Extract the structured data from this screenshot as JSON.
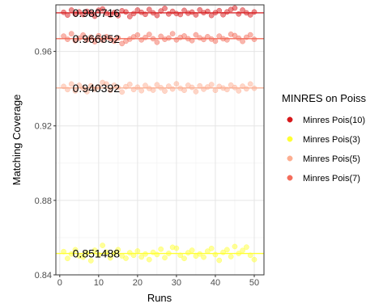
{
  "chart_data": {
    "type": "scatter",
    "xlabel": "Runs",
    "ylabel": "Matching Coverage",
    "xlim": [
      -1,
      52.5
    ],
    "ylim": [
      0.84,
      0.985
    ],
    "x_ticks": [
      0,
      10,
      20,
      30,
      40,
      50
    ],
    "x_tick_labels": [
      "0",
      "10",
      "20",
      "30",
      "40",
      "50"
    ],
    "y_ticks": [
      0.84,
      0.88,
      0.92,
      0.96
    ],
    "y_tick_labels": [
      "0.84",
      "0.88",
      "0.92",
      "0.96"
    ],
    "grid": true,
    "legend_position": "right",
    "legend": {
      "title": "MINRES on Poiss",
      "entries": [
        {
          "label": "Minres Pois(10)",
          "color": "#d7191c"
        },
        {
          "label": "Minres Pois(3)",
          "color": "#ffff33"
        },
        {
          "label": "Minres Pois(5)",
          "color": "#fdae91"
        },
        {
          "label": "Minres Pois(7)",
          "color": "#f46d5b"
        }
      ]
    },
    "series": [
      {
        "name": "Minres Pois(10)",
        "color": "#d7191c",
        "mean": 0.980716,
        "mean_label": "0.980716",
        "x": [
          1,
          2,
          3,
          4,
          5,
          6,
          7,
          8,
          9,
          10,
          11,
          12,
          13,
          14,
          15,
          16,
          17,
          18,
          19,
          20,
          21,
          22,
          23,
          24,
          25,
          26,
          27,
          28,
          29,
          30,
          31,
          32,
          33,
          34,
          35,
          36,
          37,
          38,
          39,
          40,
          41,
          42,
          43,
          44,
          45,
          46,
          47,
          48,
          49,
          50
        ],
        "values": [
          0.981,
          0.9795,
          0.9822,
          0.9801,
          0.9812,
          0.9798,
          0.9815,
          0.9806,
          0.9789,
          0.9821,
          0.9828,
          0.9805,
          0.9796,
          0.9809,
          0.9792,
          0.9818,
          0.9812,
          0.9787,
          0.9803,
          0.9822,
          0.981,
          0.9799,
          0.9825,
          0.9807,
          0.9793,
          0.9817,
          0.9831,
          0.9801,
          0.9815,
          0.9803,
          0.9798,
          0.982,
          0.9805,
          0.9811,
          0.9796,
          0.9823,
          0.9808,
          0.9815,
          0.9793,
          0.9808,
          0.9819,
          0.9797,
          0.9812,
          0.9825,
          0.9833,
          0.9801,
          0.9822,
          0.9807,
          0.9796,
          0.9812
        ]
      },
      {
        "name": "Minres Pois(7)",
        "color": "#f46d5b",
        "mean": 0.966852,
        "mean_label": "0.966852",
        "x": [
          1,
          2,
          3,
          4,
          5,
          6,
          7,
          8,
          9,
          10,
          11,
          12,
          13,
          14,
          15,
          16,
          17,
          18,
          19,
          20,
          21,
          22,
          23,
          24,
          25,
          26,
          27,
          28,
          29,
          30,
          31,
          32,
          33,
          34,
          35,
          36,
          37,
          38,
          39,
          40,
          41,
          42,
          43,
          44,
          45,
          46,
          47,
          48,
          49,
          50
        ],
        "values": [
          0.9682,
          0.9665,
          0.9695,
          0.9658,
          0.9671,
          0.9688,
          0.9662,
          0.9676,
          0.9652,
          0.9684,
          0.9661,
          0.9679,
          0.9669,
          0.9655,
          0.9672,
          0.9642,
          0.9655,
          0.9666,
          0.9678,
          0.9688,
          0.9662,
          0.9675,
          0.9691,
          0.9668,
          0.9649,
          0.9681,
          0.9665,
          0.9672,
          0.9695,
          0.9662,
          0.9675,
          0.9683,
          0.9668,
          0.9658,
          0.9689,
          0.9673,
          0.9664,
          0.9679,
          0.9666,
          0.9655,
          0.9682,
          0.9668,
          0.9662,
          0.9692,
          0.9685,
          0.9671,
          0.9654,
          0.9676,
          0.9689,
          0.9665
        ]
      },
      {
        "name": "Minres Pois(5)",
        "color": "#fdae91",
        "mean": 0.940392,
        "mean_label": "0.940392",
        "x": [
          1,
          2,
          3,
          4,
          5,
          6,
          7,
          8,
          9,
          10,
          11,
          12,
          13,
          14,
          15,
          16,
          17,
          18,
          19,
          20,
          21,
          22,
          23,
          24,
          25,
          26,
          27,
          28,
          29,
          30,
          31,
          32,
          33,
          34,
          35,
          36,
          37,
          38,
          39,
          40,
          41,
          42,
          43,
          44,
          45,
          46,
          47,
          48,
          49,
          50
        ],
        "values": [
          0.9412,
          0.9395,
          0.9425,
          0.9388,
          0.9418,
          0.9402,
          0.9384,
          0.9415,
          0.9397,
          0.9409,
          0.9433,
          0.9425,
          0.9391,
          0.9418,
          0.9405,
          0.9382,
          0.9411,
          0.9423,
          0.9395,
          0.9408,
          0.9389,
          0.9417,
          0.9401,
          0.9392,
          0.9421,
          0.9405,
          0.9387,
          0.9413,
          0.9398,
          0.9426,
          0.9402,
          0.9391,
          0.9418,
          0.9407,
          0.9384,
          0.9415,
          0.9397,
          0.9409,
          0.9422,
          0.9391,
          0.9412,
          0.9403,
          0.9395,
          0.9419,
          0.9406,
          0.9388,
          0.9413,
          0.9399,
          0.9425,
          0.9402
        ]
      },
      {
        "name": "Minres Pois(3)",
        "color": "#ffff33",
        "mean": 0.851488,
        "mean_label": "0.851488",
        "x": [
          1,
          2,
          3,
          4,
          5,
          6,
          7,
          8,
          9,
          10,
          11,
          12,
          13,
          14,
          15,
          16,
          17,
          18,
          19,
          20,
          21,
          22,
          23,
          24,
          25,
          26,
          27,
          28,
          29,
          30,
          31,
          32,
          33,
          34,
          35,
          36,
          37,
          38,
          39,
          40,
          41,
          42,
          43,
          44,
          45,
          46,
          47,
          48,
          49,
          50
        ],
        "values": [
          0.8525,
          0.8488,
          0.8512,
          0.8535,
          0.8502,
          0.8495,
          0.8518,
          0.8476,
          0.8532,
          0.8508,
          0.8558,
          0.8522,
          0.8491,
          0.8515,
          0.8535,
          0.8502,
          0.8489,
          0.8519,
          0.8505,
          0.8528,
          0.8496,
          0.8512,
          0.8482,
          0.8521,
          0.8509,
          0.8538,
          0.8492,
          0.8515,
          0.8548,
          0.8543,
          0.8505,
          0.8488,
          0.8519,
          0.8532,
          0.8501,
          0.8512,
          0.8495,
          0.8527,
          0.8542,
          0.8509,
          0.8478,
          0.8521,
          0.8535,
          0.8498,
          0.8552,
          0.8515,
          0.8531,
          0.8549,
          0.8505,
          0.8482
        ]
      }
    ]
  }
}
